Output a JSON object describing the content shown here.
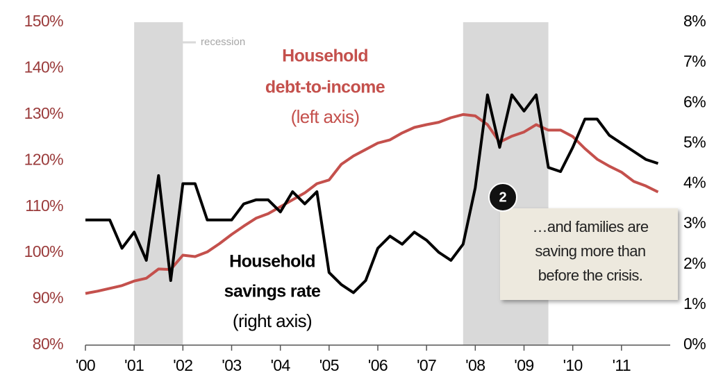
{
  "chart_data": {
    "type": "line",
    "x": [
      2000,
      2000.25,
      2000.5,
      2000.75,
      2001,
      2001.25,
      2001.5,
      2001.75,
      2002,
      2002.25,
      2002.5,
      2002.75,
      2003,
      2003.25,
      2003.5,
      2003.75,
      2004,
      2004.25,
      2004.5,
      2004.75,
      2005,
      2005.25,
      2005.5,
      2005.75,
      2006,
      2006.25,
      2006.5,
      2006.75,
      2007,
      2007.25,
      2007.5,
      2007.75,
      2008,
      2008.25,
      2008.5,
      2008.75,
      2009,
      2009.25,
      2009.5,
      2009.75,
      2010,
      2010.25,
      2010.5,
      2010.75,
      2011,
      2011.25,
      2011.5,
      2011.75
    ],
    "series": [
      {
        "color": "#c4504c",
        "axis": "y",
        "values": [
          91.2,
          91.7,
          92.3,
          92.9,
          93.9,
          94.5,
          96.5,
          96.4,
          99.5,
          99.2,
          100.2,
          102.0,
          104.0,
          105.8,
          107.5,
          108.5,
          110.0,
          111.5,
          113.0,
          115.0,
          115.8,
          119.2,
          121.0,
          122.4,
          123.8,
          124.5,
          126.0,
          127.2,
          127.8,
          128.3,
          129.3,
          130.0,
          129.7,
          127.8,
          124.0,
          125.3,
          126.2,
          127.8,
          126.6,
          126.6,
          125.2,
          122.6,
          120.3,
          118.8,
          117.5,
          115.5,
          114.5,
          113.2
        ]
      },
      {
        "color": "#000000",
        "axis": "y2",
        "values": [
          3.1,
          3.1,
          3.1,
          2.4,
          2.8,
          2.1,
          4.2,
          1.6,
          4.0,
          4.0,
          3.1,
          3.1,
          3.1,
          3.5,
          3.6,
          3.6,
          3.3,
          3.8,
          3.5,
          3.8,
          1.8,
          1.5,
          1.3,
          1.6,
          2.4,
          2.7,
          2.5,
          2.8,
          2.6,
          2.3,
          2.1,
          2.5,
          3.9,
          6.2,
          4.9,
          6.2,
          5.8,
          6.2,
          4.4,
          4.3,
          4.9,
          5.6,
          5.6,
          5.2,
          5.0,
          4.8,
          4.6,
          4.5
        ]
      }
    ],
    "xlim": [
      2000,
      2012
    ],
    "xticks": [
      {
        "value": 2000,
        "label": "'00"
      },
      {
        "value": 2001,
        "label": "'01"
      },
      {
        "value": 2002,
        "label": "'02"
      },
      {
        "value": 2003,
        "label": "'03"
      },
      {
        "value": 2004,
        "label": "'04"
      },
      {
        "value": 2005,
        "label": "'05"
      },
      {
        "value": 2006,
        "label": "'06"
      },
      {
        "value": 2007,
        "label": "'07"
      },
      {
        "value": 2008,
        "label": "'08"
      },
      {
        "value": 2009,
        "label": "'09"
      },
      {
        "value": 2010,
        "label": "'10"
      },
      {
        "value": 2011,
        "label": "'11"
      }
    ],
    "ylim": [
      80,
      150
    ],
    "yticks": [
      {
        "value": 80,
        "label": "80%"
      },
      {
        "value": 90,
        "label": "90%"
      },
      {
        "value": 100,
        "label": "100%"
      },
      {
        "value": 110,
        "label": "110%"
      },
      {
        "value": 120,
        "label": "120%"
      },
      {
        "value": 130,
        "label": "130%"
      },
      {
        "value": 140,
        "label": "140%"
      },
      {
        "value": 150,
        "label": "150%"
      }
    ],
    "y2lim": [
      0,
      8
    ],
    "y2ticks": [
      {
        "value": 0,
        "label": "0%"
      },
      {
        "value": 1,
        "label": "1%"
      },
      {
        "value": 2,
        "label": "2%"
      },
      {
        "value": 3,
        "label": "3%"
      },
      {
        "value": 4,
        "label": "4%"
      },
      {
        "value": 5,
        "label": "5%"
      },
      {
        "value": 6,
        "label": "6%"
      },
      {
        "value": 7,
        "label": "7%"
      },
      {
        "value": 8,
        "label": "8%"
      }
    ],
    "recessions": [
      [
        2001,
        2002
      ],
      [
        2007.75,
        2009.5
      ]
    ],
    "recession_color": "#d9d9d9",
    "recession_label": "recession",
    "debt_label": [
      "Household",
      "debt-to-income",
      "(left axis)"
    ],
    "savings_label": [
      "Household",
      "savings rate",
      "(right axis)"
    ],
    "badge": "2",
    "callout": [
      "…and families are",
      "saving more than",
      "before the crisis."
    ]
  }
}
